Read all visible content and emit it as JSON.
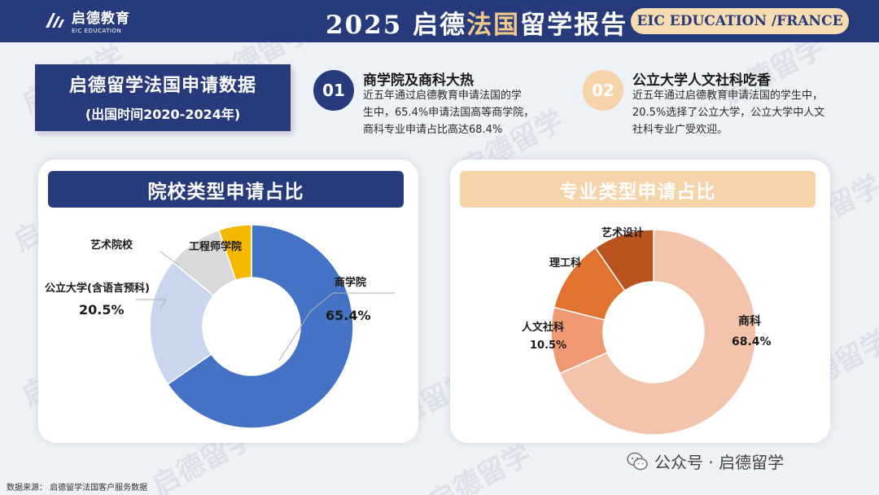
{
  "header": {
    "logo_cn": "启德教育",
    "logo_en": "EIC EDUCATION",
    "title_prefix": "2025 启德",
    "title_highlight": "法国",
    "title_suffix": "留学报告",
    "badge": "EIC EDUCATION /FRANCE"
  },
  "intro": {
    "title": "启德留学法国申请数据",
    "subtitle": "(出国时间2020-2024年)"
  },
  "points": [
    {
      "number": "01",
      "heading": "商学院及商科大热",
      "lines": [
        "近五年通过启德教育申请法国的学",
        "生中，65.4%申请法国高等商学院，",
        "商科专业申请占比高达68.4%"
      ]
    },
    {
      "number": "02",
      "heading": "公立大学人文社科吃香",
      "lines": [
        "近五年通过启德教育申请法国的学生中，",
        "20.5%选择了公立大学，公立大学中人文",
        "社科专业广受欢迎。"
      ]
    }
  ],
  "colors": {
    "navy": "#273a7c",
    "business_school": "#4472c4",
    "public_univ": "#c9d6ee",
    "art_school": "#d9d9d9",
    "engineering_school": "#f5b800",
    "business_major": "#f4c3ab",
    "humanities_major": "#ef9a72",
    "engineering_major": "#e2732f",
    "art_major": "#b9541f"
  },
  "chart_data": [
    {
      "type": "pie",
      "title": "院校类型申请占比",
      "donut": true,
      "categories": [
        "商学院",
        "公立大学(含语言预科)",
        "艺术院校",
        "工程师学院"
      ],
      "values": [
        65.4,
        20.5,
        8.9,
        5.2
      ],
      "data_labels": [
        "65.4%",
        "20.5%",
        "",
        ""
      ]
    },
    {
      "type": "pie",
      "title": "专业类型申请占比",
      "donut": true,
      "categories": [
        "商科",
        "人文社科",
        "理工科",
        "艺术设计"
      ],
      "values": [
        68.4,
        10.5,
        11.5,
        9.6
      ],
      "data_labels": [
        "68.4%",
        "10.5%",
        "",
        ""
      ]
    }
  ],
  "footer": {
    "source": "数据来源：   启德留学法国客户服务数据",
    "wechat": "公众号 · 启德留学"
  },
  "watermark_text": "启德留学"
}
